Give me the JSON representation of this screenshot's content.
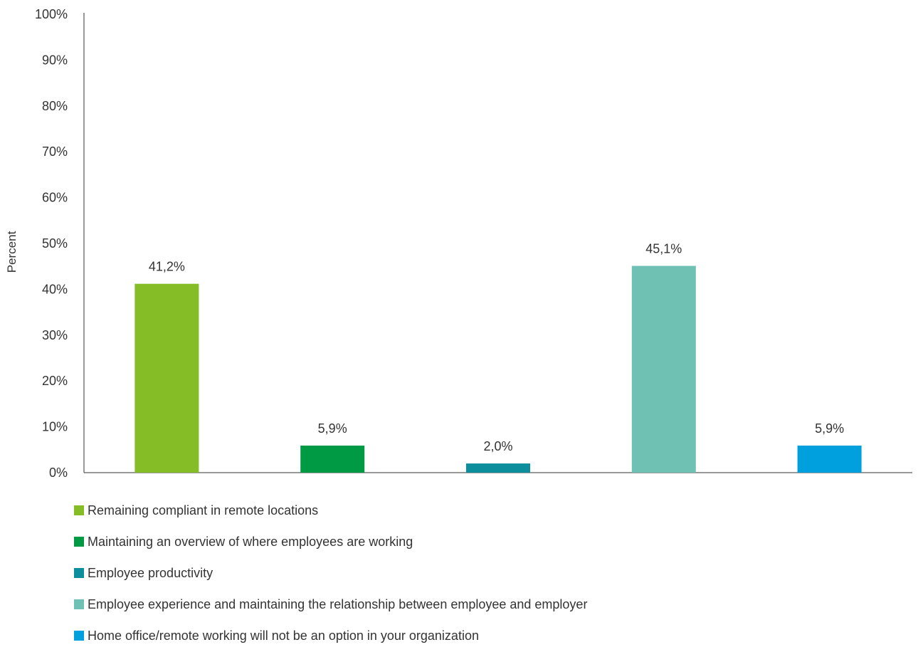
{
  "chart_data": {
    "type": "bar",
    "title": "",
    "xlabel": "",
    "ylabel": "Percent",
    "ylim": [
      0,
      100
    ],
    "yticks": [
      "0%",
      "10%",
      "20%",
      "30%",
      "40%",
      "50%",
      "60%",
      "70%",
      "80%",
      "90%",
      "100%"
    ],
    "grid": false,
    "legend_position": "bottom-left",
    "series": [
      {
        "name": "Remaining compliant in remote locations",
        "value": 41.2,
        "label": "41,2%",
        "color": "#84BD26"
      },
      {
        "name": "Maintaining an overview of where employees are working",
        "value": 5.9,
        "label": "5,9%",
        "color": "#009A44"
      },
      {
        "name": "Employee productivity",
        "value": 2.0,
        "label": "2,0%",
        "color": "#0D8E9D"
      },
      {
        "name": "Employee experience and maintaining the relationship between employee and employer",
        "value": 45.1,
        "label": "45,1%",
        "color": "#6EC1B3"
      },
      {
        "name": "Home office/remote working will not be an option in your organization",
        "value": 5.9,
        "label": "5,9%",
        "color": "#00A0DE"
      }
    ]
  }
}
